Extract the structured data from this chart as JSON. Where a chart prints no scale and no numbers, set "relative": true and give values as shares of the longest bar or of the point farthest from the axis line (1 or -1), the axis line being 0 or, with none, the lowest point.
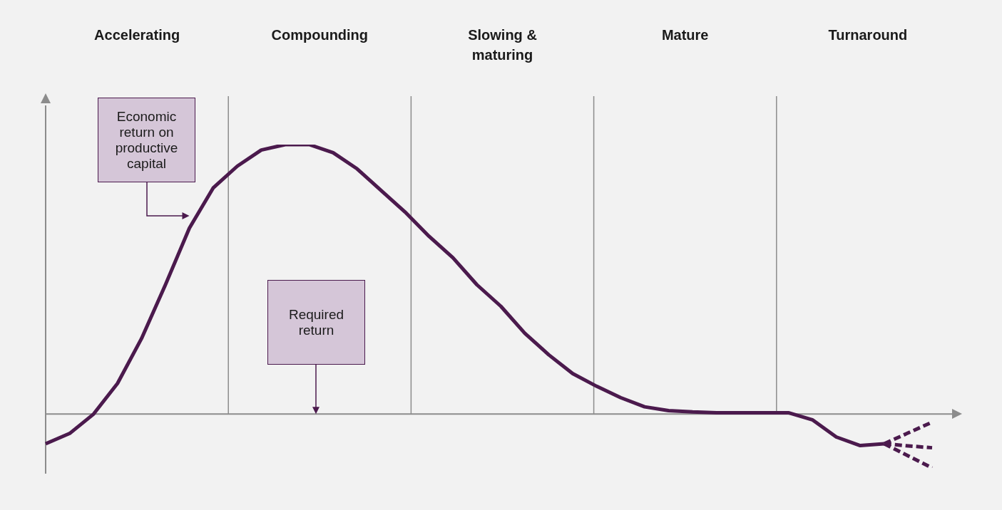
{
  "chart_data": {
    "type": "line",
    "relative": true,
    "categories": [
      null,
      null,
      null,
      null,
      null,
      null,
      null,
      null,
      null,
      null,
      null,
      null,
      null,
      null,
      null,
      null,
      null,
      null,
      null,
      null,
      null,
      null,
      null,
      null,
      null,
      null,
      null,
      null,
      null,
      null,
      null,
      null,
      null,
      null,
      null,
      null,
      null,
      null
    ],
    "annotations": [
      "Accelerating",
      "Compounding",
      "Slowing & maturing",
      "Mature",
      "Turnaround",
      "Economic return on productive capital",
      "Required return"
    ],
    "series": [
      {
        "color": "#4b1a4d",
        "line_style": "solid",
        "values": [
          -0.11,
          -0.072,
          0,
          0.114,
          0.28,
          0.48,
          0.69,
          0.84,
          0.92,
          0.98,
          1.0,
          1.0,
          0.97,
          0.91,
          0.83,
          0.75,
          0.66,
          0.58,
          0.48,
          0.4,
          0.3,
          0.22,
          0.15,
          0.103,
          0.061,
          0.027,
          0.013,
          0.008,
          0.005,
          0.005,
          0.005,
          0.005,
          -0.021,
          -0.085,
          -0.117,
          -0.11,
          null,
          null
        ]
      },
      {
        "color": "#4b1a4d",
        "line_style": "dashed",
        "values": [
          null,
          null,
          null,
          null,
          null,
          null,
          null,
          null,
          null,
          null,
          null,
          null,
          null,
          null,
          null,
          null,
          null,
          null,
          null,
          null,
          null,
          null,
          null,
          null,
          null,
          null,
          null,
          null,
          null,
          null,
          null,
          null,
          null,
          null,
          null,
          -0.11,
          -0.07,
          -0.03
        ]
      },
      {
        "color": "#4b1a4d",
        "line_style": "dashed",
        "values": [
          null,
          null,
          null,
          null,
          null,
          null,
          null,
          null,
          null,
          null,
          null,
          null,
          null,
          null,
          null,
          null,
          null,
          null,
          null,
          null,
          null,
          null,
          null,
          null,
          null,
          null,
          null,
          null,
          null,
          null,
          null,
          null,
          null,
          null,
          null,
          -0.11,
          -0.118,
          -0.125
        ]
      },
      {
        "color": "#4b1a4d",
        "line_style": "dashed",
        "values": [
          null,
          null,
          null,
          null,
          null,
          null,
          null,
          null,
          null,
          null,
          null,
          null,
          null,
          null,
          null,
          null,
          null,
          null,
          null,
          null,
          null,
          null,
          null,
          null,
          null,
          null,
          null,
          null,
          null,
          null,
          null,
          null,
          null,
          null,
          null,
          -0.11,
          -0.155,
          -0.2
        ]
      }
    ]
  }
}
